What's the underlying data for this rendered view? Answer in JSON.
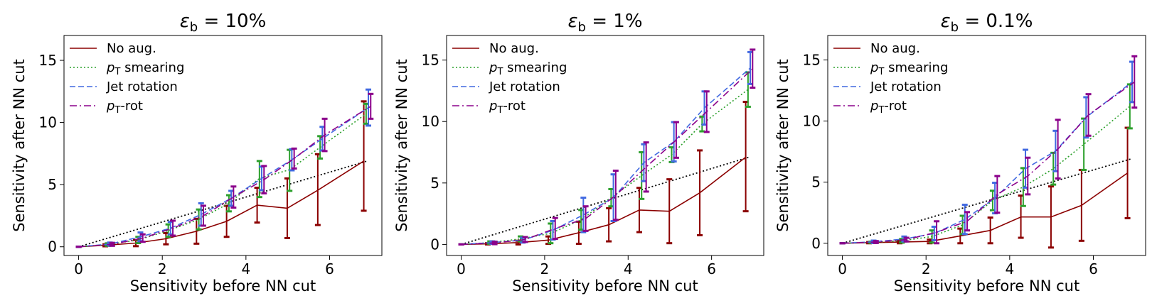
{
  "chart_data": [
    {
      "type": "line",
      "title": "ε_b = 10%",
      "title_parts": {
        "symbol": "ε",
        "sub": "b",
        "rest": " = 10%"
      },
      "xlabel": "Sensitivity before NN cut",
      "ylabel": "Sensitivity after NN cut",
      "xlim": [
        -0.35,
        7.25
      ],
      "ylim": [
        -0.7,
        17
      ],
      "xticks": [
        0,
        2,
        4,
        6
      ],
      "yticks": [
        0,
        5,
        10,
        15
      ],
      "legend_position": "upper-left",
      "x": [
        0.0,
        0.72,
        1.45,
        2.17,
        2.9,
        3.62,
        4.35,
        5.07,
        5.8,
        6.9
      ],
      "reference_line": {
        "x": [
          0.0,
          6.9
        ],
        "y": [
          0.0,
          6.9
        ]
      },
      "series": [
        {
          "name": "No aug.",
          "legend": "No aug.",
          "style": "solid",
          "color": "#8b0000",
          "values": [
            0,
            0.12,
            0.3,
            0.65,
            1.25,
            2.05,
            3.35,
            3.1,
            4.55,
            6.9
          ],
          "err_low": [
            0,
            0.08,
            0.25,
            0.45,
            1.0,
            1.25,
            1.4,
            2.4,
            2.8,
            4.0
          ],
          "err_high": [
            0,
            0.08,
            0.25,
            0.45,
            1.0,
            1.25,
            1.4,
            2.4,
            2.9,
            4.8
          ]
        },
        {
          "name": "pT smearing",
          "legend_sym": "p",
          "legend_sub": "T",
          "legend_rest": " smearing",
          "style": "dotted",
          "color": "#2ca02c",
          "values": [
            0,
            0.18,
            0.55,
            1.3,
            2.2,
            3.5,
            5.5,
            6.2,
            8.0,
            10.7
          ],
          "err_low": [
            0,
            0.1,
            0.25,
            0.5,
            0.8,
            0.65,
            1.5,
            1.7,
            0.9,
            0.8
          ],
          "err_high": [
            0,
            0.1,
            0.25,
            0.5,
            0.8,
            0.65,
            1.4,
            1.6,
            0.9,
            0.8
          ]
        },
        {
          "name": "Jet rotation",
          "legend": "Jet rotation",
          "style": "dashed",
          "color": "#4169e1",
          "values": [
            0,
            0.22,
            0.8,
            1.5,
            2.6,
            3.9,
            5.5,
            7.0,
            8.7,
            11.2
          ],
          "err_low": [
            0,
            0.12,
            0.35,
            0.5,
            0.9,
            0.6,
            0.95,
            0.85,
            0.95,
            1.45
          ],
          "err_high": [
            0,
            0.12,
            0.35,
            0.5,
            0.9,
            0.6,
            0.95,
            0.85,
            0.95,
            1.45
          ]
        },
        {
          "name": "pT-rot",
          "legend_sym": "p",
          "legend_sub": "T",
          "legend_rest": "-rot",
          "style": "dashdot",
          "color": "#8b008b",
          "values": [
            0,
            0.2,
            0.7,
            1.5,
            2.5,
            4.0,
            5.4,
            7.1,
            9.0,
            11.3
          ],
          "err_low": [
            0,
            0.12,
            0.3,
            0.6,
            0.8,
            0.85,
            1.1,
            0.8,
            1.3,
            1.0
          ],
          "err_high": [
            0,
            0.12,
            0.3,
            0.6,
            0.8,
            0.85,
            1.1,
            0.8,
            1.3,
            1.0
          ]
        }
      ]
    },
    {
      "type": "line",
      "title": "ε_b = 1%",
      "title_parts": {
        "symbol": "ε",
        "sub": "b",
        "rest": " = 1%"
      },
      "xlabel": "Sensitivity before NN cut",
      "ylabel": "Sensitivity after NN cut",
      "xlim": [
        -0.35,
        7.25
      ],
      "ylim": [
        -0.9,
        17
      ],
      "xticks": [
        0,
        2,
        4,
        6
      ],
      "yticks": [
        0,
        5,
        10,
        15
      ],
      "legend_position": "upper-left",
      "x": [
        0.0,
        0.72,
        1.45,
        2.17,
        2.9,
        3.62,
        4.35,
        5.07,
        5.8,
        6.9
      ],
      "reference_line": {
        "x": [
          0.0,
          6.9
        ],
        "y": [
          0.0,
          7.1
        ]
      },
      "series": [
        {
          "name": "No aug.",
          "legend": "No aug.",
          "style": "solid",
          "color": "#8b0000",
          "values": [
            0,
            0.05,
            0.15,
            0.35,
            0.95,
            1.6,
            2.8,
            2.7,
            4.2,
            7.1
          ],
          "err_low": [
            0,
            0.05,
            0.15,
            0.3,
            0.9,
            1.35,
            1.8,
            2.6,
            3.45,
            4.4
          ],
          "err_high": [
            0,
            0.05,
            0.15,
            0.3,
            0.9,
            1.35,
            1.8,
            2.6,
            3.45,
            4.5
          ]
        },
        {
          "name": "pT smearing",
          "legend_sym": "p",
          "legend_sub": "T",
          "legend_rest": " smearing",
          "style": "dotted",
          "color": "#2ca02c",
          "values": [
            0,
            0.15,
            0.45,
            0.9,
            2.0,
            3.8,
            5.6,
            7.3,
            9.8,
            12.6
          ],
          "err_low": [
            0,
            0.1,
            0.2,
            0.8,
            0.8,
            0.7,
            1.9,
            0.6,
            0.6,
            1.4
          ],
          "err_high": [
            0,
            0.1,
            0.2,
            0.8,
            0.8,
            0.7,
            1.9,
            0.6,
            0.6,
            1.4
          ]
        },
        {
          "name": "Jet rotation",
          "legend": "Jet rotation",
          "style": "dashed",
          "color": "#4169e1",
          "values": [
            0,
            0.15,
            0.35,
            1.15,
            2.4,
            3.8,
            6.65,
            8.35,
            11.1,
            14.35
          ],
          "err_low": [
            0,
            0.1,
            0.2,
            0.75,
            1.4,
            1.9,
            1.5,
            1.6,
            1.35,
            1.3
          ],
          "err_high": [
            0,
            0.1,
            0.2,
            0.75,
            1.4,
            1.9,
            1.5,
            1.6,
            1.35,
            1.3
          ]
        },
        {
          "name": "pT-rot",
          "legend_sym": "p",
          "legend_sub": "T",
          "legend_rest": "-rot",
          "style": "dashdot",
          "color": "#8b008b",
          "values": [
            0,
            0.12,
            0.4,
            1.3,
            2.1,
            4.0,
            6.3,
            8.5,
            10.8,
            14.3
          ],
          "err_low": [
            0,
            0.1,
            0.2,
            0.85,
            1.0,
            2.0,
            2.0,
            1.45,
            1.65,
            1.55
          ],
          "err_high": [
            0,
            0.1,
            0.2,
            0.85,
            1.0,
            2.0,
            2.0,
            1.45,
            1.65,
            1.55
          ]
        }
      ]
    },
    {
      "type": "line",
      "title": "ε_b = 0.1%",
      "title_parts": {
        "symbol": "ε",
        "sub": "b",
        "rest": " = 0.1%"
      },
      "xlabel": "Sensitivity before NN cut",
      "ylabel": "Sensitivity after NN cut",
      "xlim": [
        -0.35,
        7.25
      ],
      "ylim": [
        -1.0,
        17
      ],
      "xticks": [
        0,
        2,
        4,
        6
      ],
      "yticks": [
        0,
        5,
        10,
        15
      ],
      "legend_position": "upper-left",
      "x": [
        0.0,
        0.72,
        1.45,
        2.17,
        2.9,
        3.62,
        4.35,
        5.07,
        5.8,
        6.9
      ],
      "reference_line": {
        "x": [
          0.0,
          6.9
        ],
        "y": [
          0.0,
          6.9
        ]
      },
      "series": [
        {
          "name": "No aug.",
          "legend": "No aug.",
          "style": "solid",
          "color": "#8b0000",
          "values": [
            0,
            0.05,
            0.1,
            0.15,
            0.6,
            1.05,
            2.15,
            2.15,
            3.1,
            5.75
          ],
          "err_low": [
            0,
            0.05,
            0.1,
            0.15,
            0.6,
            1.05,
            1.7,
            2.5,
            2.9,
            3.7
          ],
          "err_high": [
            0,
            0.05,
            0.1,
            0.15,
            0.6,
            1.05,
            1.75,
            2.5,
            2.9,
            3.7
          ]
        },
        {
          "name": "pT smearing",
          "legend_sym": "p",
          "legend_sub": "T",
          "legend_rest": " smearing",
          "style": "dotted",
          "color": "#2ca02c",
          "values": [
            0,
            0.08,
            0.2,
            0.55,
            1.5,
            3.5,
            4.6,
            6.1,
            8.1,
            11.2
          ],
          "err_low": [
            0,
            0.05,
            0.15,
            0.5,
            0.75,
            0.8,
            1.55,
            1.3,
            2.1,
            1.8
          ],
          "err_high": [
            0,
            0.05,
            0.15,
            0.5,
            0.75,
            0.8,
            1.55,
            1.3,
            2.1,
            1.8
          ]
        },
        {
          "name": "Jet rotation",
          "legend": "Jet rotation",
          "style": "dashed",
          "color": "#4169e1",
          "values": [
            0,
            0.12,
            0.35,
            0.8,
            1.95,
            3.7,
            6.1,
            7.55,
            10.3,
            13.2
          ],
          "err_low": [
            0,
            0.1,
            0.2,
            0.55,
            1.2,
            1.25,
            1.55,
            1.65,
            1.65,
            1.65
          ],
          "err_high": [
            0,
            0.1,
            0.2,
            0.55,
            1.2,
            1.25,
            1.55,
            1.65,
            1.65,
            1.65
          ]
        },
        {
          "name": "pT-rot",
          "legend_sym": "p",
          "legend_sub": "T",
          "legend_rest": "-rot",
          "style": "dashdot",
          "color": "#8b008b",
          "values": [
            0,
            0.1,
            0.3,
            0.9,
            1.8,
            4.0,
            5.5,
            7.7,
            10.5,
            13.2
          ],
          "err_low": [
            0,
            0.08,
            0.15,
            0.9,
            0.75,
            1.5,
            1.5,
            2.4,
            1.7,
            2.1
          ],
          "err_high": [
            0,
            0.08,
            0.15,
            0.9,
            0.75,
            1.5,
            1.5,
            2.4,
            1.7,
            2.1
          ]
        }
      ]
    }
  ]
}
